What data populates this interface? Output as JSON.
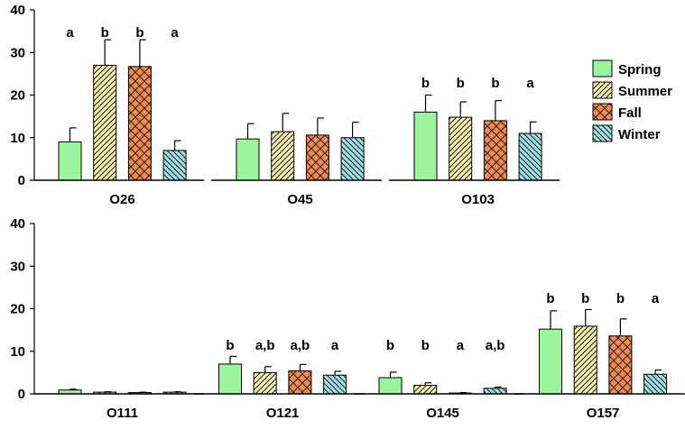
{
  "series_info": [
    {
      "name": "Spring",
      "color": "#9cf49c",
      "pattern": "solid"
    },
    {
      "name": "Summer",
      "color": "#f8f1b6",
      "pattern": "diagonal"
    },
    {
      "name": "Fall",
      "color": "#f58a4c",
      "pattern": "crosshatch"
    },
    {
      "name": "Winter",
      "color": "#9ee4e6",
      "pattern": "diagonal-back"
    }
  ],
  "chart_data": [
    {
      "type": "bar",
      "title": "",
      "xlabel": "",
      "ylabel": "",
      "ylim": [
        0,
        40
      ],
      "yticks": [
        0,
        10,
        20,
        30,
        40
      ],
      "categories": [
        "O26",
        "O45",
        "O103"
      ],
      "series": [
        {
          "name": "Spring",
          "values": [
            9,
            9.7,
            16
          ],
          "errors": [
            3.3,
            3.6,
            4.0
          ]
        },
        {
          "name": "Summer",
          "values": [
            27,
            11.4,
            14.8
          ],
          "errors": [
            6,
            4.3,
            3.6
          ]
        },
        {
          "name": "Fall",
          "values": [
            26.7,
            10.6,
            14
          ],
          "errors": [
            6.3,
            4.0,
            4.7
          ]
        },
        {
          "name": "Winter",
          "values": [
            7,
            10,
            11
          ],
          "errors": [
            2.3,
            3.6,
            2.7
          ]
        }
      ],
      "significance": [
        [
          "a",
          "b",
          "b",
          "a"
        ],
        [
          "",
          "",
          "",
          ""
        ],
        [
          "b",
          "b",
          "b",
          "a"
        ]
      ]
    },
    {
      "type": "bar",
      "title": "",
      "xlabel": "",
      "ylabel": "",
      "ylim": [
        0,
        40
      ],
      "yticks": [
        0,
        10,
        20,
        30,
        40
      ],
      "categories": [
        "O111",
        "O121",
        "O145",
        "O157"
      ],
      "series": [
        {
          "name": "Spring",
          "values": [
            0.9,
            7,
            3.8,
            15.2
          ],
          "errors": [
            0.2,
            1.8,
            1.3,
            4.3
          ]
        },
        {
          "name": "Summer",
          "values": [
            0.4,
            5,
            2,
            15.9
          ],
          "errors": [
            0.1,
            1.4,
            0.6,
            3.9
          ]
        },
        {
          "name": "Fall",
          "values": [
            0.3,
            5.4,
            0.2,
            13.6
          ],
          "errors": [
            0.1,
            1.5,
            0.1,
            4.0
          ]
        },
        {
          "name": "Winter",
          "values": [
            0.4,
            4.4,
            1.3,
            4.6
          ],
          "errors": [
            0.1,
            0.9,
            0.3,
            1.0
          ]
        }
      ],
      "significance": [
        [
          "",
          "",
          "",
          ""
        ],
        [
          "b",
          "a,b",
          "a,b",
          "a"
        ],
        [
          "b",
          "b",
          "a",
          "a,b"
        ],
        [
          "b",
          "b",
          "b",
          "a"
        ]
      ]
    }
  ]
}
